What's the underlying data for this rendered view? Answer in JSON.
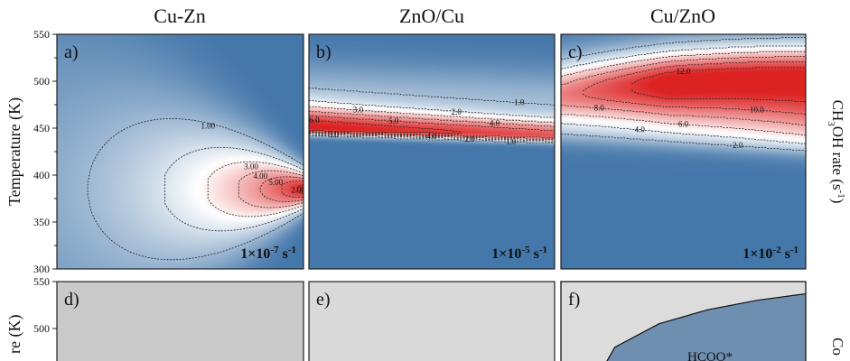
{
  "chart_data": [
    {
      "type": "heatmap",
      "panel": "a",
      "label": "a)",
      "title": "Cu-Zn",
      "ylabel": "Temperature (K)",
      "ylim": [
        300,
        550
      ],
      "yticks": [
        300,
        350,
        400,
        450,
        500,
        550
      ],
      "scale_prefix": "1×10",
      "scale_exponent": "-7",
      "scale_unit": " s",
      "scale_unit_exp": "-1",
      "peak": {
        "x": 1.0,
        "y": 385,
        "value": 7.5
      },
      "contours": [
        {
          "value": 1.0,
          "label": "1.00",
          "t_min": 0.0
        },
        {
          "value": 2.0,
          "label": "2.00",
          "t_min": 0.26
        },
        {
          "value": 3.0,
          "label": "3.00",
          "t_min": 0.42
        },
        {
          "value": 4.0,
          "label": "4.00",
          "t_min": 0.52
        },
        {
          "value": 5.0,
          "label": "5.00",
          "t_min": 0.66
        },
        {
          "value": 6.0,
          "label": "6.00",
          "t_min": 0.74
        },
        {
          "value": 7.0,
          "label": "7.00",
          "t_min": 0.86
        }
      ]
    },
    {
      "type": "heatmap",
      "panel": "b",
      "label": "b)",
      "title": "ZnO/Cu",
      "ylim": [
        300,
        550
      ],
      "scale_prefix": "1×10",
      "scale_exponent": "-5",
      "scale_unit": " s",
      "scale_unit_exp": "-1",
      "band_center": 445,
      "peak_value": 6.6,
      "contours": [
        {
          "value": 1.0,
          "label": "1.0"
        },
        {
          "value": 2.0,
          "label": "2.0"
        },
        {
          "value": 3.0,
          "label": "3.0"
        },
        {
          "value": 4.0,
          "label": "4.0"
        },
        {
          "value": 5.0,
          "label": "5.0"
        },
        {
          "value": 6.0,
          "label": "6.0"
        }
      ]
    },
    {
      "type": "heatmap",
      "panel": "c",
      "label": "c)",
      "title": "Cu/ZnO",
      "ylabel_right": "CH3OH rate (s-1)",
      "ylim": [
        300,
        550
      ],
      "scale_prefix": "1×10",
      "scale_exponent": "-2",
      "scale_unit": " s",
      "scale_unit_exp": "-1",
      "peak_value": 13.0,
      "contours": [
        {
          "value": 2.0,
          "label": "2.0"
        },
        {
          "value": 4.0,
          "label": "4.0"
        },
        {
          "value": 6.0,
          "label": "6.0"
        },
        {
          "value": 8.0,
          "label": "8.0"
        },
        {
          "value": 10.0,
          "label": "10.0"
        },
        {
          "value": 12.0,
          "label": "12.0"
        }
      ]
    },
    {
      "type": "area",
      "panel": "d",
      "label": "d)",
      "ylabel": "re (K)",
      "ylim": [
        300,
        550
      ],
      "yticks": [
        500,
        550
      ]
    },
    {
      "type": "area",
      "panel": "e",
      "label": "e)",
      "ylim": [
        300,
        550
      ]
    },
    {
      "type": "area",
      "panel": "f",
      "label": "f)",
      "ylim": [
        300,
        550
      ],
      "region_label": "HCOO*",
      "boundary_x": [
        0.22,
        0.4,
        0.6,
        0.8,
        1.0
      ],
      "boundary_y": [
        480,
        505,
        520,
        530,
        537
      ],
      "right_label": "Co"
    }
  ],
  "colors": {
    "low": "#4477aa",
    "mid": "#ffffff",
    "high": "#dd2222",
    "panel_gray_d": "#c9c9c9",
    "panel_gray_e": "#d9d9d9",
    "panel_gray_f": "#dcdcdc",
    "region_fill": "#6e8fb0"
  }
}
